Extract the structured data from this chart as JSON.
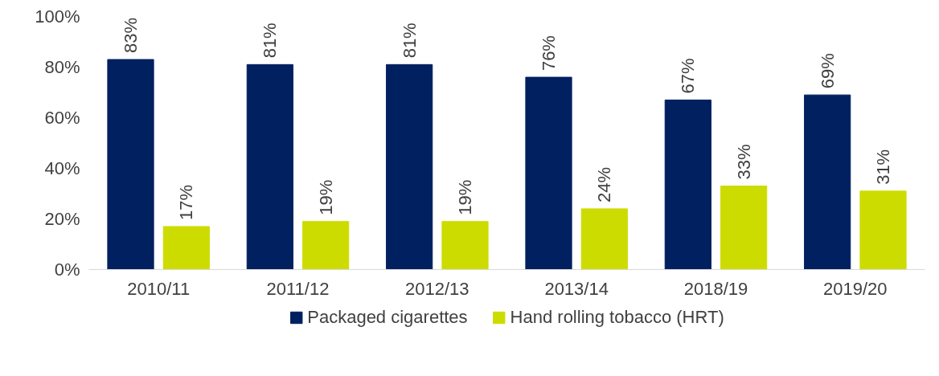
{
  "chart_data": {
    "type": "bar",
    "categories": [
      "2010/11",
      "2011/12",
      "2012/13",
      "2013/14",
      "2018/19",
      "2019/20"
    ],
    "series": [
      {
        "name": "Packaged cigarettes",
        "color": "#002060",
        "values": [
          83,
          81,
          81,
          76,
          67,
          69
        ],
        "value_labels": [
          "83%",
          "81%",
          "81%",
          "76%",
          "67%",
          "69%"
        ]
      },
      {
        "name": "Hand rolling tobacco (HRT)",
        "color": "#cddc00",
        "values": [
          17,
          19,
          19,
          24,
          33,
          31
        ],
        "value_labels": [
          "17%",
          "19%",
          "19%",
          "24%",
          "33%",
          "31%"
        ]
      }
    ],
    "ylim": [
      0,
      100
    ],
    "yticks": [
      {
        "value": 0,
        "label": "0%"
      },
      {
        "value": 20,
        "label": "20%"
      },
      {
        "value": 40,
        "label": "40%"
      },
      {
        "value": 60,
        "label": "60%"
      },
      {
        "value": 80,
        "label": "80%"
      },
      {
        "value": 100,
        "label": "100%"
      }
    ],
    "grid": false,
    "legend": "bottom"
  }
}
